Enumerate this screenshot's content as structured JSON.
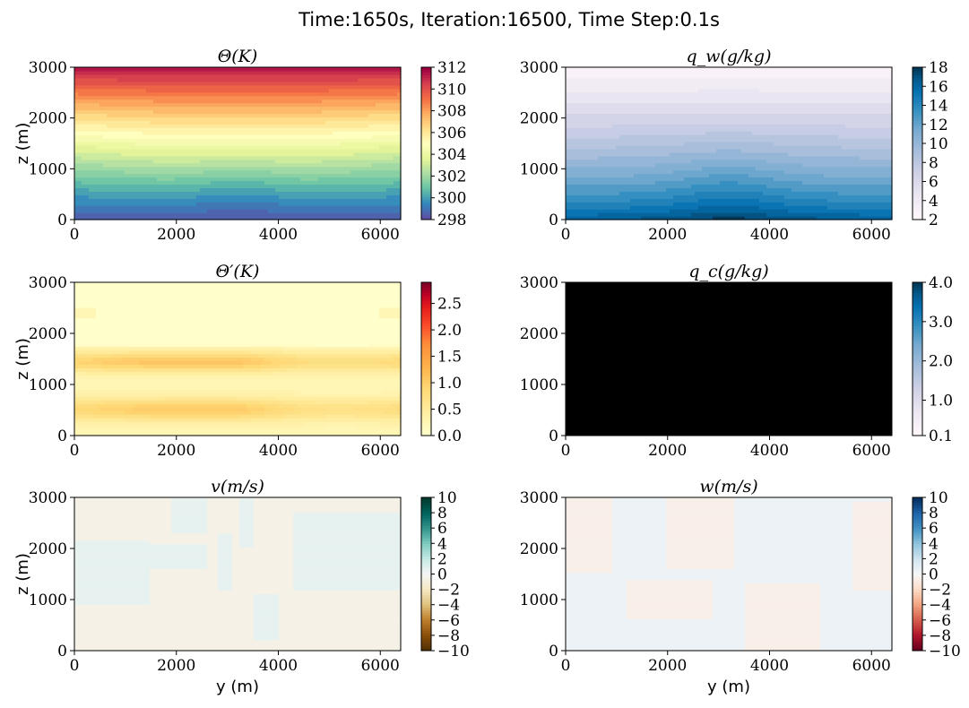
{
  "figure": {
    "title": "Time:1650s, Iteration:16500, Time Step:0.1s"
  },
  "chart_data": [
    {
      "type": "heatmap",
      "title": "Θ(K)",
      "field": "theta",
      "ylabel": "z (m)",
      "xlabel": "",
      "xlim": [
        0,
        6400
      ],
      "ylim": [
        0,
        3000
      ],
      "x_ticks": [
        0,
        2000,
        4000,
        6000
      ],
      "y_ticks": [
        0,
        1000,
        2000,
        3000
      ],
      "colorbar": {
        "cmap": "Spectral_r",
        "range": [
          298,
          312
        ],
        "ticks": [
          298,
          300,
          302,
          304,
          306,
          308,
          310,
          312
        ]
      },
      "description_values": {
        "bottom_value": 298.5,
        "top_value": 311.5
      }
    },
    {
      "type": "heatmap",
      "title": "q_w(g/kg)",
      "field": "qw",
      "ylabel": "",
      "xlabel": "",
      "xlim": [
        0,
        6400
      ],
      "ylim": [
        0,
        3000
      ],
      "x_ticks": [
        0,
        2000,
        4000,
        6000
      ],
      "y_ticks": [
        0,
        1000,
        2000,
        3000
      ],
      "colorbar": {
        "cmap": "PuBu",
        "range": [
          2,
          18
        ],
        "ticks": [
          2,
          4,
          6,
          8,
          10,
          12,
          14,
          16,
          18
        ]
      },
      "description_values": {
        "bottom_value": 17,
        "top_value": 2.5
      }
    },
    {
      "type": "heatmap",
      "title": "Θ′(K)",
      "field": "theta_prime",
      "ylabel": "z (m)",
      "xlabel": "",
      "xlim": [
        0,
        6400
      ],
      "ylim": [
        0,
        3000
      ],
      "x_ticks": [
        0,
        2000,
        4000,
        6000
      ],
      "y_ticks": [
        0,
        1000,
        2000,
        3000
      ],
      "colorbar": {
        "cmap": "YlOrRd",
        "range": [
          0,
          2.9
        ],
        "ticks": [
          0.0,
          0.5,
          1.0,
          1.5,
          2.0,
          2.5
        ],
        "tick_labels": [
          "0.0",
          "0.5",
          "1.0",
          "1.5",
          "2.0",
          "2.5"
        ]
      },
      "description_values": {
        "band_heights": [
          500,
          1450
        ],
        "band_peak": 0.85
      }
    },
    {
      "type": "heatmap",
      "title": "q_c(g/kg)",
      "field": "qc",
      "ylabel": "",
      "xlabel": "",
      "xlim": [
        0,
        6400
      ],
      "ylim": [
        0,
        3000
      ],
      "x_ticks": [
        0,
        2000,
        4000,
        6000
      ],
      "y_ticks": [
        0,
        1000,
        2000,
        3000
      ],
      "colorbar": {
        "cmap": "PuBu",
        "range": [
          0.1,
          4.0
        ],
        "ticks": [
          0.1,
          1.0,
          2.0,
          3.0,
          4.0
        ],
        "tick_labels": [
          "0.1",
          "1.0",
          "2.0",
          "3.0",
          "4.0"
        ]
      },
      "description_values": {
        "fill": "#000000"
      }
    },
    {
      "type": "heatmap",
      "title": "v(m/s)",
      "field": "v",
      "ylabel": "z (m)",
      "xlabel": "y (m)",
      "xlim": [
        0,
        6400
      ],
      "ylim": [
        0,
        3000
      ],
      "x_ticks": [
        0,
        2000,
        4000,
        6000
      ],
      "y_ticks": [
        0,
        1000,
        2000,
        3000
      ],
      "colorbar": {
        "cmap": "BrBG",
        "range": [
          -10,
          10
        ],
        "ticks": [
          -10,
          -8,
          -6,
          -4,
          -2,
          0,
          2,
          4,
          6,
          8,
          10
        ],
        "tick_labels": [
          "−10",
          "−8",
          "−6",
          "−4",
          "−2",
          "0",
          "2",
          "4",
          "6",
          "8",
          "10"
        ]
      },
      "description_values": {
        "positive_fill": "#e8f0ee",
        "negative_fill": "#f5f0e6"
      }
    },
    {
      "type": "heatmap",
      "title": "w(m/s)",
      "field": "w",
      "ylabel": "",
      "xlabel": "y (m)",
      "xlim": [
        0,
        6400
      ],
      "ylim": [
        0,
        3000
      ],
      "x_ticks": [
        0,
        2000,
        4000,
        6000
      ],
      "y_ticks": [
        0,
        1000,
        2000,
        3000
      ],
      "colorbar": {
        "cmap": "RdBu",
        "range": [
          -10,
          10
        ],
        "ticks": [
          -10,
          -8,
          -6,
          -4,
          -2,
          0,
          2,
          4,
          6,
          8,
          10
        ],
        "tick_labels": [
          "−10",
          "−8",
          "−6",
          "−4",
          "−2",
          "0",
          "2",
          "4",
          "6",
          "8",
          "10"
        ]
      },
      "description_values": {
        "positive_fill": "#e8eef1",
        "negative_fill": "#f6ede9"
      }
    }
  ]
}
